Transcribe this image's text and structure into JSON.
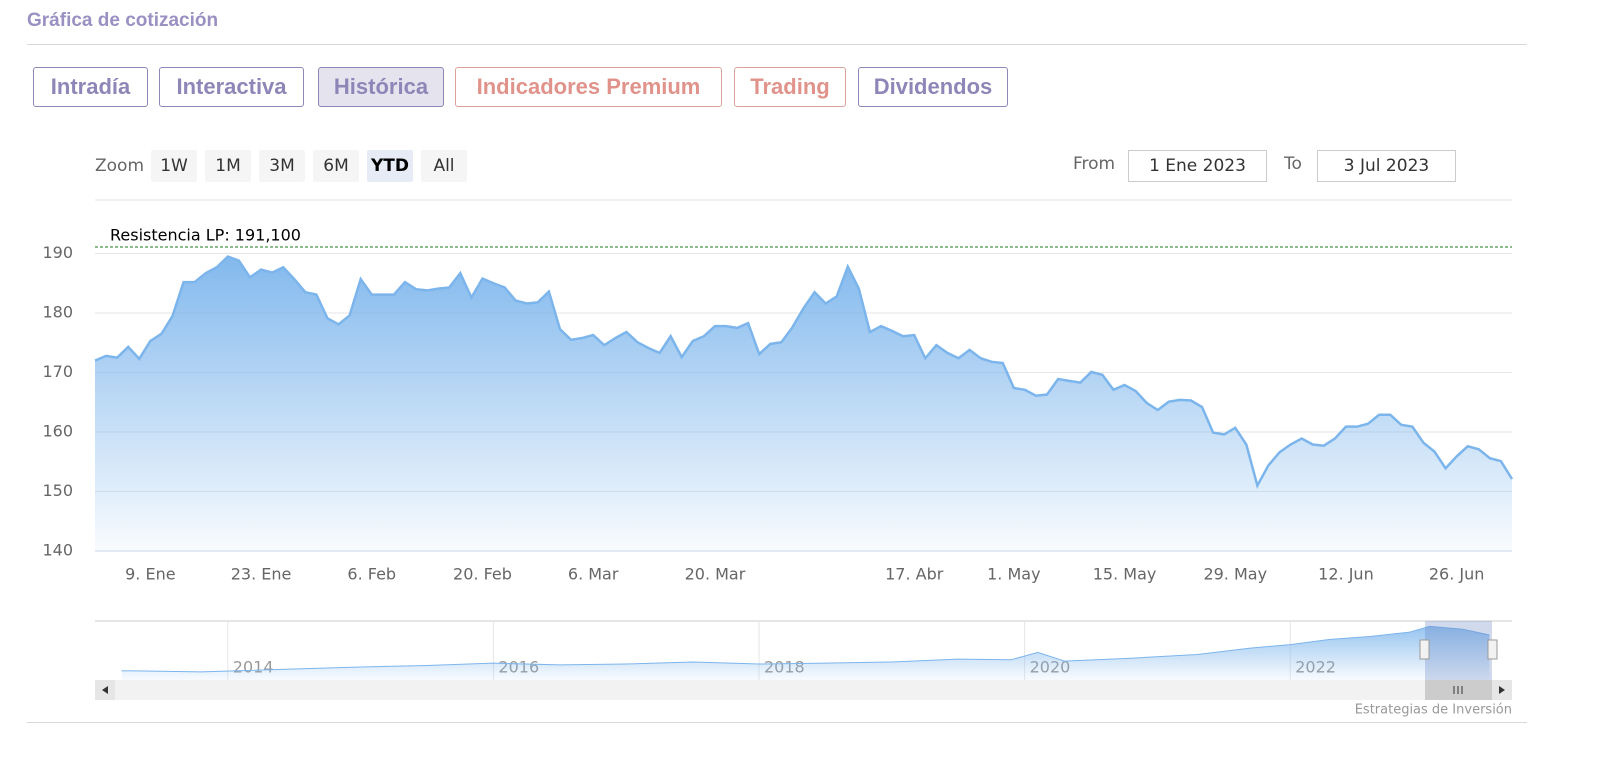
{
  "header": {
    "title": "Gráfica de cotización"
  },
  "tabs": [
    "Intradía",
    "Interactiva",
    "Histórica",
    "Indicadores Premium",
    "Trading",
    "Dividendos"
  ],
  "zoom": {
    "label": "Zoom",
    "buttons": [
      "1W",
      "1M",
      "3M",
      "6M",
      "YTD",
      "All"
    ],
    "from_label": "From",
    "from": "1 Ene 2023",
    "to_label": "To",
    "to": "3 Jul 2023"
  },
  "credits": "Estrategias de Inversión",
  "chart_data": {
    "type": "area",
    "categories": [
      null,
      null,
      null,
      null,
      null,
      "9. Ene",
      null,
      null,
      null,
      null,
      null,
      null,
      null,
      null,
      null,
      "23. Ene",
      null,
      null,
      null,
      null,
      null,
      null,
      null,
      null,
      null,
      "6. Feb",
      null,
      null,
      null,
      null,
      null,
      null,
      null,
      null,
      null,
      "20. Feb",
      null,
      null,
      null,
      null,
      null,
      null,
      null,
      null,
      null,
      "6. Mar",
      null,
      null,
      null,
      null,
      null,
      null,
      null,
      null,
      null,
      null,
      "20. Mar",
      null,
      null,
      null,
      null,
      null,
      null,
      null,
      null,
      null,
      null,
      null,
      null,
      null,
      null,
      null,
      null,
      null,
      "17. Abr",
      null,
      null,
      null,
      null,
      null,
      null,
      null,
      null,
      "1. May",
      null,
      null,
      null,
      null,
      null,
      null,
      null,
      null,
      null,
      "15. May",
      null,
      null,
      null,
      null,
      null,
      null,
      null,
      null,
      null,
      "29. May",
      null,
      null,
      null,
      null,
      null,
      null,
      null,
      null,
      null,
      "12. Jun",
      null,
      null,
      null,
      null,
      null,
      null,
      null,
      null,
      null,
      "26. Jun",
      null,
      null,
      null,
      null,
      null
    ],
    "series": [
      {
        "color": "#7cb5ec",
        "values": [
          172.0,
          172.8,
          172.5,
          174.3,
          172.3,
          175.3,
          176.5,
          179.5,
          185.2,
          185.2,
          186.7,
          187.7,
          189.5,
          188.8,
          186.0,
          187.3,
          186.8,
          187.7,
          185.7,
          183.5,
          183.1,
          179.1,
          178.1,
          179.6,
          185.7,
          183.1,
          183.1,
          183.1,
          185.2,
          184.0,
          183.8,
          184.1,
          184.3,
          186.7,
          182.6,
          185.8,
          185.0,
          184.3,
          182.1,
          181.6,
          181.8,
          183.6,
          177.3,
          175.5,
          175.8,
          176.3,
          174.6,
          175.8,
          176.8,
          175.1,
          174.1,
          173.3,
          176.1,
          172.6,
          175.3,
          176.1,
          177.8,
          177.8,
          177.5,
          178.3,
          173.1,
          174.8,
          175.1,
          177.6,
          180.8,
          183.5,
          181.6,
          182.8,
          187.8,
          184.1,
          176.8,
          177.8,
          177.0,
          176.1,
          176.3,
          172.4,
          174.6,
          173.3,
          172.4,
          173.8,
          172.4,
          171.8,
          171.6,
          167.4,
          167.1,
          166.1,
          166.3,
          168.9,
          168.6,
          168.3,
          170.1,
          169.6,
          167.1,
          167.9,
          166.9,
          164.9,
          163.7,
          165.1,
          165.4,
          165.3,
          164.2,
          159.9,
          159.6,
          160.7,
          157.9,
          151.0,
          154.4,
          156.6,
          157.9,
          158.9,
          157.9,
          157.7,
          158.9,
          160.9,
          160.9,
          161.4,
          162.9,
          162.9,
          161.2,
          160.9,
          158.2,
          156.7,
          153.9,
          155.9,
          157.6,
          157.1,
          155.6,
          155.1,
          152.1
        ]
      }
    ],
    "ylim": [
      140,
      199
    ],
    "yticks": [
      140,
      150,
      160,
      170,
      180,
      190
    ],
    "grid": true,
    "plot_lines": [
      {
        "value": 191.1,
        "label": "Resistencia LP: 191,100",
        "color": "#1a7a1a"
      }
    ],
    "navigator": {
      "x": [
        2013.2,
        2013.8,
        2014.5,
        2015,
        2015.5,
        2016,
        2016.5,
        2017,
        2017.5,
        2018,
        2018.5,
        2019,
        2019.5,
        2019.9,
        2020.1,
        2020.3,
        2020.8,
        2021.3,
        2021.7,
        2022,
        2022.3,
        2022.6,
        2022.9,
        2023.05,
        2023.3,
        2023.5
      ],
      "values": [
        32,
        28,
        38,
        45,
        50,
        58,
        52,
        55,
        62,
        55,
        58,
        62,
        72,
        70,
        95,
        65,
        75,
        88,
        110,
        122,
        140,
        150,
        165,
        185,
        175,
        155
      ],
      "xlim": [
        2013,
        2023.67
      ],
      "ylim": [
        0,
        200
      ],
      "xticks": [
        2014,
        2016,
        2018,
        2020,
        2022
      ],
      "color": "#7cb5ec"
    }
  }
}
